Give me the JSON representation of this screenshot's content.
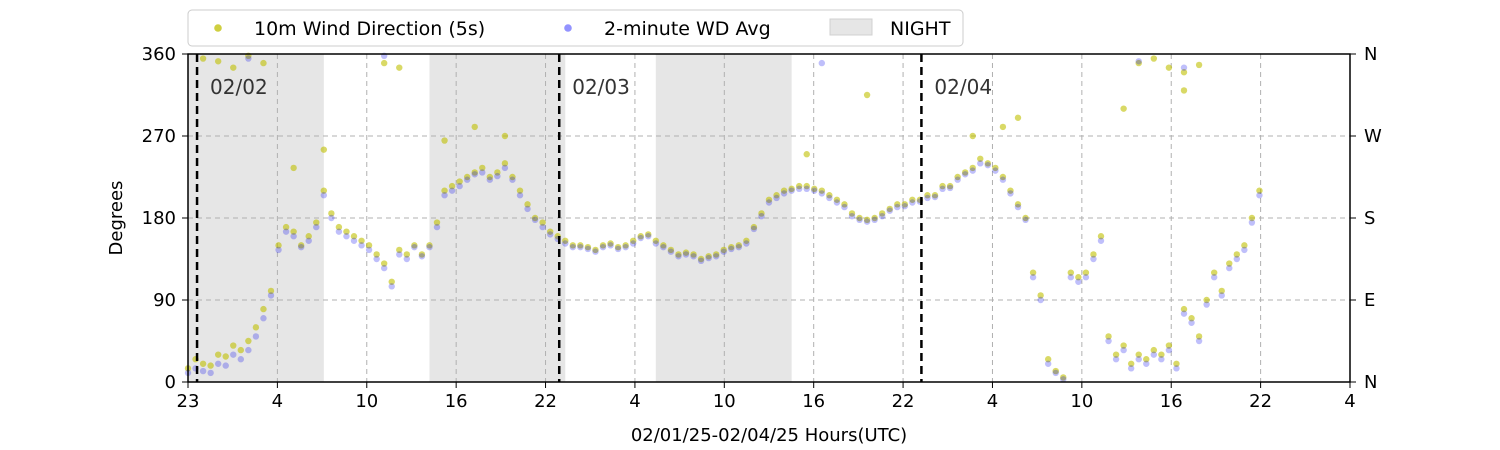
{
  "chart_data": {
    "type": "scatter",
    "title": "",
    "xlabel": "02/01/25-02/04/25  Hours(UTC)",
    "ylabel": "Degrees",
    "x_range_hours": [
      0,
      77
    ],
    "x_origin": "02/01/25 23:00 UTC",
    "ylim": [
      0,
      360
    ],
    "x_tick_labels": [
      "23",
      "4",
      "10",
      "16",
      "22",
      "4",
      "10",
      "16",
      "22",
      "4",
      "10",
      "16",
      "22",
      "4"
    ],
    "y_tick_labels": [
      "0",
      "90",
      "180",
      "270",
      "360"
    ],
    "y_tick_values": [
      0,
      90,
      180,
      270,
      360
    ],
    "right_tick_labels": [
      "N",
      "E",
      "S",
      "W",
      "N"
    ],
    "grid": true,
    "legend": {
      "placement": "top",
      "ncol": 3
    },
    "series": [
      {
        "name": "10m Wind Direction (5s)",
        "color": "#bfbf00",
        "marker": "circle",
        "alpha": 0.6,
        "points": [
          [
            0,
            15
          ],
          [
            0.5,
            25
          ],
          [
            1,
            20
          ],
          [
            1.5,
            18
          ],
          [
            2,
            30
          ],
          [
            2.5,
            28
          ],
          [
            3,
            40
          ],
          [
            3.5,
            35
          ],
          [
            4,
            45
          ],
          [
            4.5,
            60
          ],
          [
            5,
            80
          ],
          [
            5.5,
            100
          ],
          [
            6,
            150
          ],
          [
            6.5,
            170
          ],
          [
            7,
            165
          ],
          [
            7.5,
            150
          ],
          [
            8,
            160
          ],
          [
            8.5,
            175
          ],
          [
            9,
            210
          ],
          [
            9.5,
            185
          ],
          [
            10,
            170
          ],
          [
            10.5,
            165
          ],
          [
            11,
            160
          ],
          [
            11.5,
            155
          ],
          [
            12,
            150
          ],
          [
            12.5,
            140
          ],
          [
            13,
            130
          ],
          [
            13.5,
            110
          ],
          [
            14,
            145
          ],
          [
            14.5,
            140
          ],
          [
            15,
            150
          ],
          [
            15.5,
            140
          ],
          [
            16,
            150
          ],
          [
            16.5,
            175
          ],
          [
            17,
            210
          ],
          [
            17.5,
            215
          ],
          [
            18,
            220
          ],
          [
            18.5,
            225
          ],
          [
            19,
            230
          ],
          [
            19.5,
            235
          ],
          [
            20,
            225
          ],
          [
            20.5,
            230
          ],
          [
            21,
            240
          ],
          [
            21.5,
            225
          ],
          [
            22,
            210
          ],
          [
            22.5,
            195
          ],
          [
            23,
            180
          ],
          [
            23.5,
            175
          ],
          [
            24,
            165
          ],
          [
            24.5,
            160
          ],
          [
            25,
            155
          ],
          [
            25.5,
            150
          ],
          [
            26,
            150
          ],
          [
            26.5,
            148
          ],
          [
            27,
            145
          ],
          [
            27.5,
            150
          ],
          [
            28,
            152
          ],
          [
            28.5,
            148
          ],
          [
            29,
            150
          ],
          [
            29.5,
            155
          ],
          [
            30,
            160
          ],
          [
            30.5,
            162
          ],
          [
            31,
            155
          ],
          [
            31.5,
            150
          ],
          [
            32,
            145
          ],
          [
            32.5,
            140
          ],
          [
            33,
            142
          ],
          [
            33.5,
            140
          ],
          [
            34,
            135
          ],
          [
            34.5,
            138
          ],
          [
            35,
            140
          ],
          [
            35.5,
            145
          ],
          [
            36,
            148
          ],
          [
            36.5,
            150
          ],
          [
            37,
            155
          ],
          [
            37.5,
            170
          ],
          [
            38,
            185
          ],
          [
            38.5,
            200
          ],
          [
            39,
            205
          ],
          [
            39.5,
            210
          ],
          [
            40,
            212
          ],
          [
            40.5,
            215
          ],
          [
            41,
            215
          ],
          [
            41.5,
            212
          ],
          [
            42,
            210
          ],
          [
            42.5,
            205
          ],
          [
            43,
            200
          ],
          [
            43.5,
            195
          ],
          [
            44,
            185
          ],
          [
            44.5,
            180
          ],
          [
            45,
            178
          ],
          [
            45.5,
            180
          ],
          [
            46,
            185
          ],
          [
            46.5,
            190
          ],
          [
            47,
            195
          ],
          [
            47.5,
            195
          ],
          [
            48,
            200
          ],
          [
            48.5,
            200
          ],
          [
            49,
            205
          ],
          [
            49.5,
            205
          ],
          [
            50,
            215
          ],
          [
            50.5,
            215
          ],
          [
            51,
            225
          ],
          [
            51.5,
            230
          ],
          [
            52,
            235
          ],
          [
            52.5,
            245
          ],
          [
            53,
            240
          ],
          [
            53.5,
            235
          ],
          [
            54,
            225
          ],
          [
            54.5,
            210
          ],
          [
            55,
            195
          ],
          [
            55.5,
            180
          ],
          [
            56,
            120
          ],
          [
            56.5,
            95
          ],
          [
            57,
            25
          ],
          [
            57.5,
            12
          ],
          [
            58,
            5
          ],
          [
            58.5,
            120
          ],
          [
            59,
            115
          ],
          [
            59.5,
            120
          ],
          [
            60,
            140
          ],
          [
            60.5,
            160
          ],
          [
            61,
            50
          ],
          [
            61.5,
            30
          ],
          [
            62,
            40
          ],
          [
            62.5,
            20
          ],
          [
            63,
            30
          ],
          [
            63.5,
            25
          ],
          [
            64,
            35
          ],
          [
            64.5,
            30
          ],
          [
            65,
            40
          ],
          [
            65.5,
            20
          ],
          [
            66,
            80
          ],
          [
            66.5,
            70
          ],
          [
            67,
            50
          ],
          [
            67.5,
            90
          ],
          [
            68,
            120
          ],
          [
            68.5,
            100
          ],
          [
            69,
            130
          ],
          [
            69.5,
            140
          ],
          [
            70,
            150
          ],
          [
            70.5,
            180
          ],
          [
            71,
            210
          ],
          [
            1,
            355
          ],
          [
            2,
            352
          ],
          [
            3,
            345
          ],
          [
            4,
            358
          ],
          [
            5,
            350
          ],
          [
            13,
            350
          ],
          [
            14,
            345
          ],
          [
            63,
            350
          ],
          [
            64,
            355
          ],
          [
            65,
            345
          ],
          [
            66,
            340
          ],
          [
            67,
            348
          ],
          [
            7,
            235
          ],
          [
            9,
            255
          ],
          [
            17,
            265
          ],
          [
            19,
            280
          ],
          [
            21,
            270
          ],
          [
            41,
            250
          ],
          [
            45,
            315
          ],
          [
            52,
            270
          ],
          [
            54,
            280
          ],
          [
            55,
            290
          ],
          [
            62,
            300
          ],
          [
            66,
            320
          ]
        ]
      },
      {
        "name": "2-minute WD Avg",
        "color": "#0000ee",
        "marker": "circle",
        "alpha": 0.25,
        "points": [
          [
            0,
            10
          ],
          [
            0.5,
            15
          ],
          [
            1,
            12
          ],
          [
            1.5,
            10
          ],
          [
            2,
            20
          ],
          [
            2.5,
            18
          ],
          [
            3,
            30
          ],
          [
            3.5,
            25
          ],
          [
            4,
            35
          ],
          [
            4.5,
            50
          ],
          [
            5,
            70
          ],
          [
            5.5,
            95
          ],
          [
            6,
            145
          ],
          [
            6.5,
            165
          ],
          [
            7,
            160
          ],
          [
            7.5,
            148
          ],
          [
            8,
            155
          ],
          [
            8.5,
            170
          ],
          [
            9,
            205
          ],
          [
            9.5,
            180
          ],
          [
            10,
            165
          ],
          [
            10.5,
            160
          ],
          [
            11,
            155
          ],
          [
            11.5,
            150
          ],
          [
            12,
            145
          ],
          [
            12.5,
            135
          ],
          [
            13,
            125
          ],
          [
            13.5,
            105
          ],
          [
            14,
            140
          ],
          [
            14.5,
            135
          ],
          [
            15,
            148
          ],
          [
            15.5,
            138
          ],
          [
            16,
            148
          ],
          [
            16.5,
            170
          ],
          [
            17,
            205
          ],
          [
            17.5,
            210
          ],
          [
            18,
            215
          ],
          [
            18.5,
            222
          ],
          [
            19,
            228
          ],
          [
            19.5,
            230
          ],
          [
            20,
            222
          ],
          [
            20.5,
            226
          ],
          [
            21,
            235
          ],
          [
            21.5,
            222
          ],
          [
            22,
            205
          ],
          [
            22.5,
            190
          ],
          [
            23,
            178
          ],
          [
            23.5,
            170
          ],
          [
            24,
            162
          ],
          [
            24.5,
            157
          ],
          [
            25,
            152
          ],
          [
            25.5,
            148
          ],
          [
            26,
            148
          ],
          [
            26.5,
            146
          ],
          [
            27,
            143
          ],
          [
            27.5,
            148
          ],
          [
            28,
            150
          ],
          [
            28.5,
            146
          ],
          [
            29,
            148
          ],
          [
            29.5,
            152
          ],
          [
            30,
            158
          ],
          [
            30.5,
            160
          ],
          [
            31,
            152
          ],
          [
            31.5,
            148
          ],
          [
            32,
            143
          ],
          [
            32.5,
            138
          ],
          [
            33,
            140
          ],
          [
            33.5,
            138
          ],
          [
            34,
            133
          ],
          [
            34.5,
            136
          ],
          [
            35,
            138
          ],
          [
            35.5,
            143
          ],
          [
            36,
            146
          ],
          [
            36.5,
            148
          ],
          [
            37,
            152
          ],
          [
            37.5,
            168
          ],
          [
            38,
            182
          ],
          [
            38.5,
            197
          ],
          [
            39,
            202
          ],
          [
            39.5,
            207
          ],
          [
            40,
            210
          ],
          [
            40.5,
            212
          ],
          [
            41,
            212
          ],
          [
            41.5,
            210
          ],
          [
            42,
            207
          ],
          [
            42.5,
            202
          ],
          [
            43,
            197
          ],
          [
            43.5,
            192
          ],
          [
            44,
            182
          ],
          [
            44.5,
            178
          ],
          [
            45,
            176
          ],
          [
            45.5,
            178
          ],
          [
            46,
            182
          ],
          [
            46.5,
            188
          ],
          [
            47,
            192
          ],
          [
            47.5,
            193
          ],
          [
            48,
            197
          ],
          [
            48.5,
            198
          ],
          [
            49,
            202
          ],
          [
            49.5,
            203
          ],
          [
            50,
            212
          ],
          [
            50.5,
            213
          ],
          [
            51,
            222
          ],
          [
            51.5,
            228
          ],
          [
            52,
            232
          ],
          [
            52.5,
            240
          ],
          [
            53,
            238
          ],
          [
            53.5,
            232
          ],
          [
            54,
            222
          ],
          [
            54.5,
            207
          ],
          [
            55,
            192
          ],
          [
            55.5,
            178
          ],
          [
            56,
            115
          ],
          [
            56.5,
            90
          ],
          [
            57,
            20
          ],
          [
            57.5,
            10
          ],
          [
            58,
            3
          ],
          [
            58.5,
            115
          ],
          [
            59,
            110
          ],
          [
            59.5,
            115
          ],
          [
            60,
            135
          ],
          [
            60.5,
            155
          ],
          [
            61,
            45
          ],
          [
            61.5,
            25
          ],
          [
            62,
            35
          ],
          [
            62.5,
            15
          ],
          [
            63,
            25
          ],
          [
            63.5,
            20
          ],
          [
            64,
            30
          ],
          [
            64.5,
            25
          ],
          [
            65,
            35
          ],
          [
            65.5,
            15
          ],
          [
            66,
            75
          ],
          [
            66.5,
            65
          ],
          [
            67,
            45
          ],
          [
            67.5,
            85
          ],
          [
            68,
            115
          ],
          [
            68.5,
            95
          ],
          [
            69,
            125
          ],
          [
            69.5,
            135
          ],
          [
            70,
            145
          ],
          [
            70.5,
            175
          ],
          [
            71,
            205
          ],
          [
            4,
            355
          ],
          [
            13,
            358
          ],
          [
            42,
            350
          ],
          [
            63,
            352
          ],
          [
            66,
            345
          ]
        ]
      }
    ],
    "night_periods_hours": [
      [
        0,
        9
      ],
      [
        16,
        25
      ],
      [
        31,
        40
      ]
    ],
    "day_markers": [
      {
        "hour": 0.6,
        "label": "02/02"
      },
      {
        "hour": 24.6,
        "label": "02/03"
      },
      {
        "hour": 48.6,
        "label": "02/04"
      }
    ],
    "legend_entries": [
      {
        "label": "10m Wind Direction (5s)",
        "kind": "point",
        "color": "#bfbf00"
      },
      {
        "label": "2-minute WD Avg",
        "kind": "point",
        "color": "#6f6fff"
      },
      {
        "label": "NIGHT",
        "kind": "patch",
        "color": "#e6e6e6"
      }
    ]
  }
}
